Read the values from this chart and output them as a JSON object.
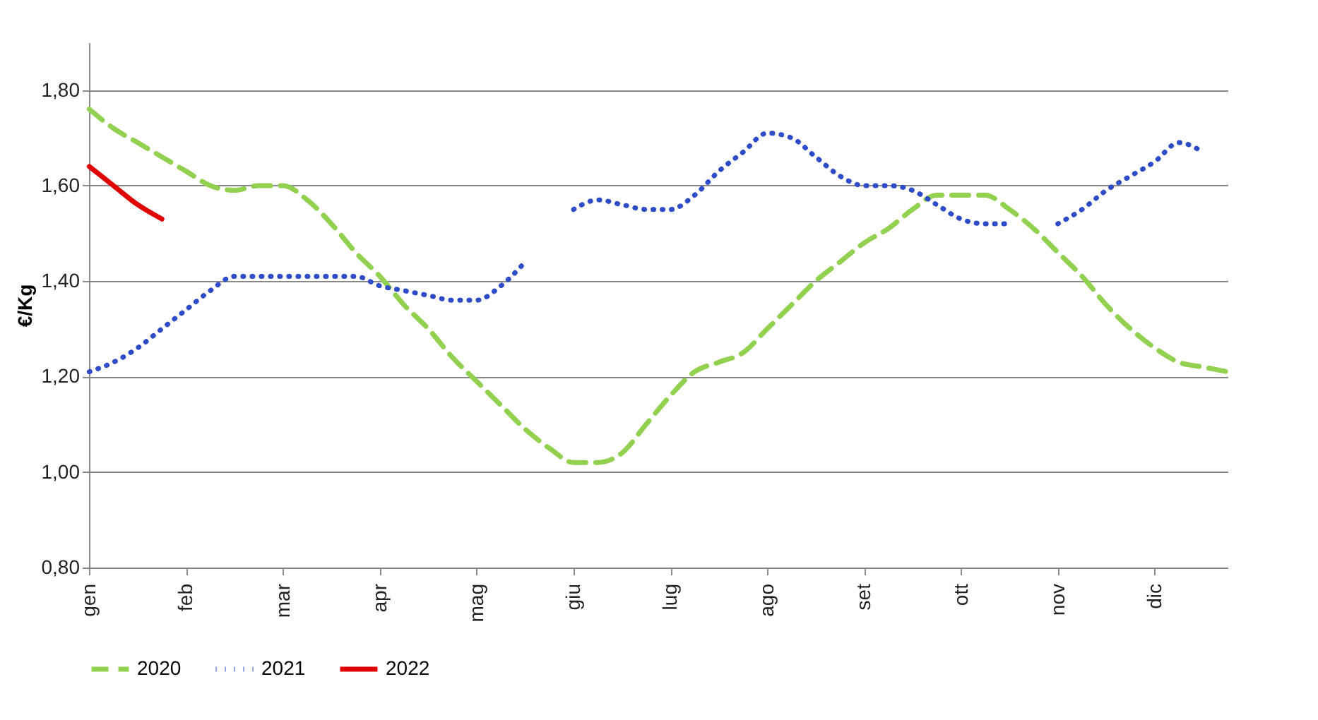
{
  "chart_data": {
    "type": "line",
    "ylabel": "€/Kg",
    "categories": [
      "gen",
      null,
      null,
      null,
      "feb",
      null,
      null,
      null,
      "mar",
      null,
      null,
      null,
      "apr",
      null,
      null,
      null,
      "mag",
      null,
      null,
      null,
      "giu",
      null,
      null,
      null,
      "lug",
      null,
      null,
      null,
      "ago",
      null,
      null,
      null,
      "set",
      null,
      null,
      null,
      "ott",
      null,
      null,
      null,
      "nov",
      null,
      null,
      null,
      "dic",
      null,
      null,
      null
    ],
    "ylim": [
      0.8,
      1.9
    ],
    "yticks": [
      {
        "value": 0.8,
        "label": "0,80"
      },
      {
        "value": 1.0,
        "label": "1,00"
      },
      {
        "value": 1.2,
        "label": "1,20"
      },
      {
        "value": 1.4,
        "label": "1,40"
      },
      {
        "value": 1.6,
        "label": "1,60"
      },
      {
        "value": 1.8,
        "label": "1,80"
      }
    ],
    "grid": "y",
    "legend": "bottom",
    "series": [
      {
        "name": "2020",
        "color": "#92d050",
        "line_style": "dashed",
        "values": [
          1.76,
          1.72,
          1.69,
          1.66,
          1.63,
          1.6,
          1.59,
          1.6,
          1.6,
          1.57,
          1.52,
          1.46,
          1.41,
          1.35,
          1.3,
          1.24,
          1.19,
          1.14,
          1.09,
          1.05,
          1.02,
          1.02,
          1.04,
          1.1,
          1.16,
          1.21,
          1.23,
          1.25,
          1.3,
          1.35,
          1.4,
          1.44,
          1.48,
          1.51,
          1.55,
          1.58,
          1.58,
          1.58,
          1.55,
          1.51,
          1.46,
          1.41,
          1.35,
          1.3,
          1.26,
          1.23,
          1.22,
          1.21
        ]
      },
      {
        "name": "2021",
        "color": "#2e4cc8",
        "line_style": "dotted",
        "values": [
          1.21,
          1.23,
          1.26,
          1.3,
          1.34,
          1.38,
          1.41,
          1.41,
          1.41,
          1.41,
          1.41,
          1.41,
          1.39,
          1.38,
          1.37,
          1.36,
          1.36,
          1.39,
          1.44,
          null,
          1.55,
          1.57,
          1.56,
          1.55,
          1.55,
          1.58,
          1.63,
          1.67,
          1.71,
          1.7,
          1.66,
          1.62,
          1.6,
          1.6,
          1.59,
          1.56,
          1.53,
          1.52,
          1.52,
          null,
          1.52,
          1.55,
          1.59,
          1.62,
          1.65,
          1.69,
          1.67,
          null
        ]
      },
      {
        "name": "2022",
        "color": "#e00000",
        "line_style": "solid",
        "values": [
          1.64,
          1.6,
          1.56,
          1.53,
          null,
          null,
          null,
          null,
          null,
          null,
          null,
          null,
          null,
          null,
          null,
          null,
          null,
          null,
          null,
          null,
          null,
          null,
          null,
          null,
          null,
          null,
          null,
          null,
          null,
          null,
          null,
          null,
          null,
          null,
          null,
          null,
          null,
          null,
          null,
          null,
          null,
          null,
          null,
          null,
          null,
          null,
          null,
          null
        ]
      }
    ]
  }
}
